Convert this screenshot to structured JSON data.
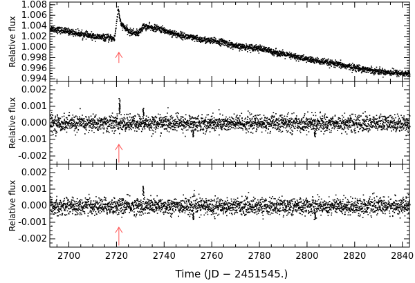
{
  "chart_data": [
    {
      "type": "scatter",
      "ylabel": "Relative flux",
      "ylim": [
        0.9935,
        1.0085
      ],
      "yticks": [
        0.994,
        0.996,
        0.998,
        1.0,
        1.002,
        1.004,
        1.006,
        1.008
      ],
      "ytick_labels": [
        "0.994",
        "0.996",
        "0.998",
        "1.000",
        "1.002",
        "1.004",
        "1.006",
        "1.008"
      ],
      "marker_color": "#000000",
      "trend": [
        [
          2692,
          1.0036
        ],
        [
          2700,
          1.003
        ],
        [
          2710,
          1.0021
        ],
        [
          2719,
          1.0017
        ],
        [
          2720.5,
          1.0075
        ],
        [
          2721.5,
          1.0045
        ],
        [
          2725,
          1.003
        ],
        [
          2729,
          1.0027
        ],
        [
          2731,
          1.004
        ],
        [
          2738,
          1.0035
        ],
        [
          2745,
          1.0025
        ],
        [
          2755,
          1.0015
        ],
        [
          2765,
          1.001
        ],
        [
          2770,
          1.0002
        ],
        [
          2778,
          1.0
        ],
        [
          2783,
          0.9995
        ],
        [
          2790,
          0.9987
        ],
        [
          2800,
          0.9978
        ],
        [
          2810,
          0.997
        ],
        [
          2820,
          0.9962
        ],
        [
          2830,
          0.9955
        ],
        [
          2843,
          0.995
        ]
      ],
      "scatter_sigma": 0.0003,
      "arrow": {
        "x": 2721,
        "from": 0.997,
        "to": 0.999,
        "color": "#ff5555"
      }
    },
    {
      "type": "scatter",
      "ylabel": "Relative flux",
      "ylim": [
        -0.0025,
        0.0025
      ],
      "yticks": [
        -0.002,
        -0.001,
        0.0,
        0.001,
        0.002
      ],
      "ytick_labels": [
        "-0.002",
        "-0.001",
        "0.000",
        "0.001",
        "0.002"
      ],
      "marker_color": "#000000",
      "trend": [
        [
          2692,
          0.0
        ],
        [
          2843,
          0.0
        ]
      ],
      "scatter_sigma": 0.00025,
      "spikes": [
        {
          "x": 2721,
          "y": 0.0015
        },
        {
          "x": 2721,
          "y": 0.0012
        },
        {
          "x": 2731,
          "y": 0.0009
        },
        {
          "x": 2752,
          "y": -0.0008
        },
        {
          "x": 2803,
          "y": -0.0008
        }
      ],
      "arrow": {
        "x": 2721,
        "from": -0.0024,
        "to": -0.0013,
        "color": "#ff5555"
      }
    },
    {
      "type": "scatter",
      "ylabel": "Relative flux",
      "xlabel": "Time (JD − 2451545.)",
      "xlim": [
        2692,
        2843
      ],
      "xticks": [
        2700,
        2720,
        2740,
        2760,
        2780,
        2800,
        2820,
        2840
      ],
      "ylim": [
        -0.0025,
        0.0025
      ],
      "yticks": [
        -0.002,
        -0.001,
        0.0,
        0.001,
        0.002
      ],
      "ytick_labels": [
        "-0.002",
        "-0.001",
        "0.000",
        "0.001",
        "0.002"
      ],
      "marker_color": "#000000",
      "trend": [
        [
          2692,
          0.0
        ],
        [
          2843,
          0.0
        ]
      ],
      "scatter_sigma": 0.00025,
      "spikes": [
        {
          "x": 2731,
          "y": 0.0012
        },
        {
          "x": 2752,
          "y": -0.0008
        },
        {
          "x": 2803,
          "y": -0.0008
        }
      ],
      "arrow": {
        "x": 2721,
        "from": -0.0024,
        "to": -0.0013,
        "color": "#ff5555"
      }
    }
  ],
  "xaxis": {
    "label": "Time (JD − 2451545.)",
    "range": [
      2692,
      2843
    ],
    "ticks": [
      "2700",
      "2720",
      "2740",
      "2760",
      "2780",
      "2800",
      "2820",
      "2840"
    ]
  }
}
